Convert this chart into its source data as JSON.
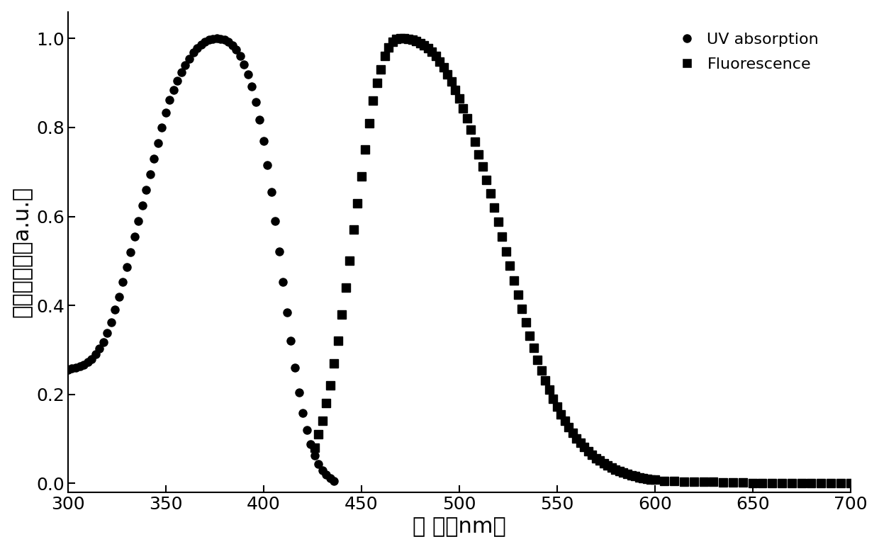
{
  "xlabel_latin": "波 长（nm）",
  "ylabel_latin": "归一化强度（a.u.）",
  "ylabel_line1": "归一化强度",
  "ylabel_line2": "（a.u.）",
  "xlim": [
    300,
    700
  ],
  "ylim": [
    -0.02,
    1.06
  ],
  "xticks": [
    300,
    350,
    400,
    450,
    500,
    550,
    600,
    650,
    700
  ],
  "yticks": [
    0.0,
    0.2,
    0.4,
    0.6,
    0.8,
    1.0
  ],
  "uv_x": [
    300,
    302,
    304,
    306,
    308,
    310,
    312,
    314,
    316,
    318,
    320,
    322,
    324,
    326,
    328,
    330,
    332,
    334,
    336,
    338,
    340,
    342,
    344,
    346,
    348,
    350,
    352,
    354,
    356,
    358,
    360,
    362,
    364,
    366,
    368,
    370,
    372,
    374,
    376,
    378,
    380,
    382,
    384,
    386,
    388,
    390,
    392,
    394,
    396,
    398,
    400,
    402,
    404,
    406,
    408,
    410,
    412,
    414,
    416,
    418,
    420,
    422,
    424,
    426,
    428,
    430,
    432,
    434,
    436
  ],
  "uv_y": [
    0.255,
    0.258,
    0.26,
    0.263,
    0.267,
    0.273,
    0.28,
    0.29,
    0.303,
    0.318,
    0.338,
    0.362,
    0.39,
    0.42,
    0.452,
    0.487,
    0.52,
    0.555,
    0.59,
    0.625,
    0.66,
    0.695,
    0.73,
    0.765,
    0.8,
    0.833,
    0.862,
    0.885,
    0.905,
    0.924,
    0.94,
    0.955,
    0.968,
    0.978,
    0.986,
    0.993,
    0.997,
    0.999,
    1.0,
    0.999,
    0.997,
    0.993,
    0.985,
    0.975,
    0.96,
    0.942,
    0.92,
    0.892,
    0.858,
    0.817,
    0.77,
    0.716,
    0.655,
    0.59,
    0.522,
    0.453,
    0.385,
    0.32,
    0.26,
    0.205,
    0.158,
    0.12,
    0.088,
    0.063,
    0.044,
    0.03,
    0.019,
    0.011,
    0.006
  ],
  "fl_x": [
    426,
    428,
    430,
    432,
    434,
    436,
    438,
    440,
    442,
    444,
    446,
    448,
    450,
    452,
    454,
    456,
    458,
    460,
    462,
    464,
    466,
    468,
    470,
    472,
    474,
    476,
    478,
    480,
    482,
    484,
    486,
    488,
    490,
    492,
    494,
    496,
    498,
    500,
    502,
    504,
    506,
    508,
    510,
    512,
    514,
    516,
    518,
    520,
    522,
    524,
    526,
    528,
    530,
    532,
    534,
    536,
    538,
    540,
    542,
    544,
    546,
    548,
    550,
    552,
    554,
    556,
    558,
    560,
    562,
    564,
    566,
    568,
    570,
    572,
    574,
    576,
    578,
    580,
    582,
    584,
    586,
    588,
    590,
    592,
    594,
    596,
    598,
    600,
    605,
    610,
    615,
    620,
    625,
    630,
    635,
    640,
    645,
    650,
    655,
    660,
    665,
    670,
    675,
    680,
    685,
    690,
    695,
    700
  ],
  "fl_y": [
    0.08,
    0.11,
    0.14,
    0.18,
    0.22,
    0.27,
    0.32,
    0.38,
    0.44,
    0.5,
    0.57,
    0.63,
    0.69,
    0.75,
    0.81,
    0.86,
    0.9,
    0.93,
    0.96,
    0.98,
    0.993,
    0.999,
    1.0,
    1.0,
    0.999,
    0.997,
    0.994,
    0.99,
    0.985,
    0.978,
    0.97,
    0.96,
    0.948,
    0.935,
    0.92,
    0.903,
    0.885,
    0.865,
    0.843,
    0.82,
    0.795,
    0.768,
    0.74,
    0.712,
    0.682,
    0.652,
    0.62,
    0.588,
    0.555,
    0.522,
    0.489,
    0.456,
    0.424,
    0.392,
    0.362,
    0.332,
    0.305,
    0.278,
    0.254,
    0.231,
    0.21,
    0.19,
    0.172,
    0.155,
    0.14,
    0.126,
    0.113,
    0.101,
    0.091,
    0.081,
    0.072,
    0.064,
    0.057,
    0.051,
    0.045,
    0.04,
    0.035,
    0.031,
    0.027,
    0.024,
    0.021,
    0.018,
    0.016,
    0.014,
    0.012,
    0.01,
    0.009,
    0.008,
    0.006,
    0.005,
    0.004,
    0.004,
    0.003,
    0.003,
    0.002,
    0.002,
    0.002,
    0.001,
    0.001,
    0.001,
    0.001,
    0.001,
    0.001,
    0.0,
    0.0,
    0.0,
    0.0,
    0.0
  ],
  "marker_color": "#000000",
  "bg_color": "#ffffff",
  "fontsize_label": 22,
  "fontsize_tick": 18,
  "fontsize_legend": 16
}
